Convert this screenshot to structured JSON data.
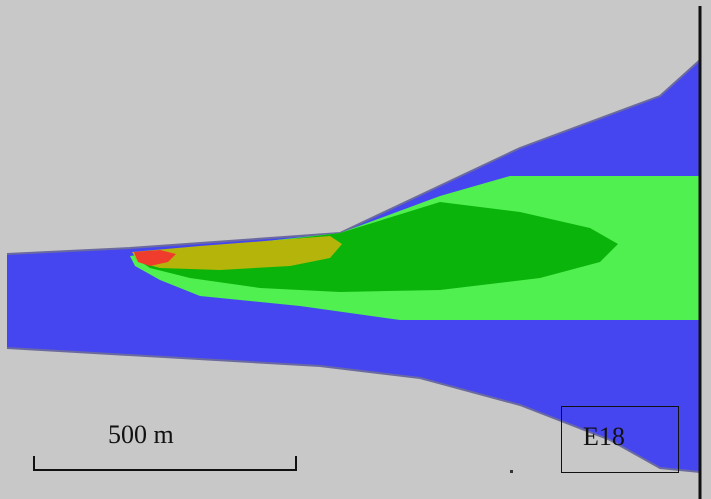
{
  "scale_bar": {
    "label": "500 m"
  },
  "station": {
    "label": "E18"
  },
  "colors": {
    "land": "#c8c8c8",
    "water": "#4646f0",
    "light_green": "#50f050",
    "green": "#0ab40a",
    "yellow": "#b4b40a",
    "red": "#f03c2d",
    "line": "#111111"
  }
}
